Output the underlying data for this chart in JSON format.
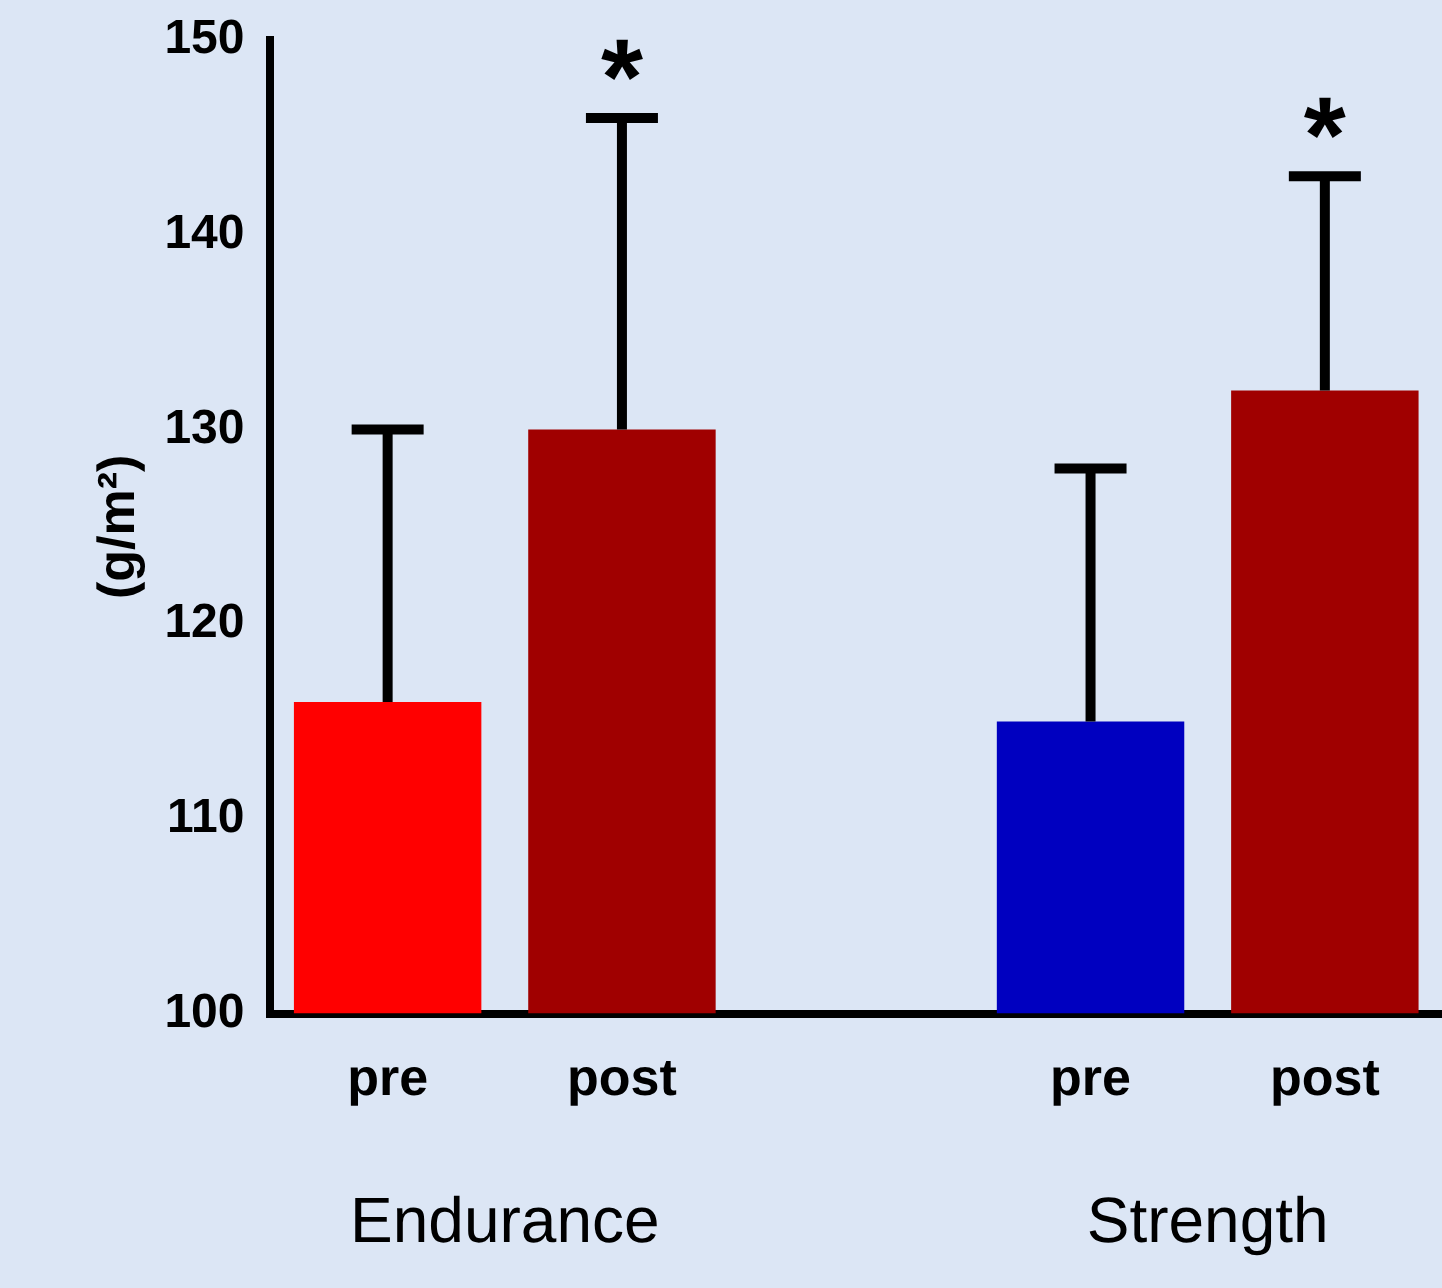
{
  "chart_data": {
    "type": "bar",
    "ylabel": "(g/m²)",
    "categories": [
      "pre",
      "post",
      null,
      "pre",
      "post"
    ],
    "values": [
      116,
      130,
      null,
      115,
      132
    ],
    "colors": [
      "#ff0000",
      "#a00000",
      null,
      "#0000c0",
      "#a00000"
    ],
    "errors": [
      [
        116,
        130
      ],
      [
        130,
        146
      ],
      null,
      [
        115,
        128
      ],
      [
        132,
        143
      ]
    ],
    "value_labels": [
      null,
      "*",
      null,
      null,
      "*"
    ],
    "annotations": [
      "Endurance",
      "Strength"
    ],
    "ylim": [
      100,
      150
    ],
    "yticks": [
      100,
      110,
      120,
      130,
      140,
      150
    ],
    "grid": false,
    "legend": false
  }
}
